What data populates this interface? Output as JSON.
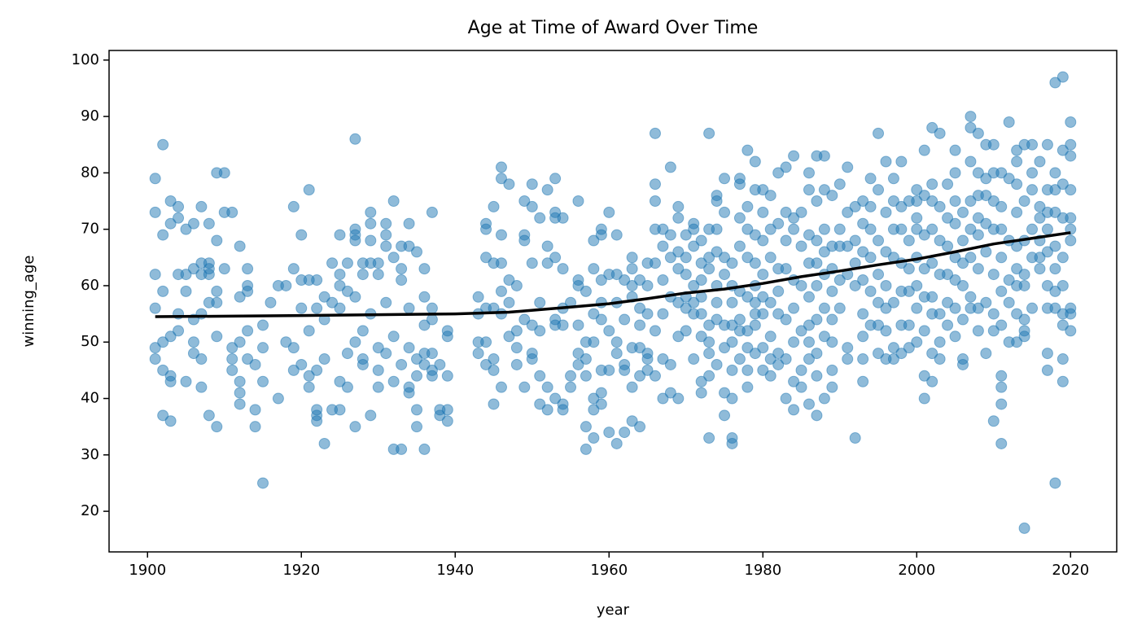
{
  "chart_data": {
    "type": "scatter",
    "title": "Age at Time of Award Over Time",
    "x_label": "year",
    "y_label": "winning_age",
    "color": "#1f77b4",
    "xlim": [
      1895,
      2026
    ],
    "ylim": [
      12.8,
      101.7
    ],
    "xticks": [
      1900,
      1920,
      1940,
      1960,
      1980,
      2000,
      2020
    ],
    "yticks": [
      20,
      30,
      40,
      50,
      60,
      70,
      80,
      90,
      100
    ],
    "grid": false,
    "x": [
      1901,
      1901,
      1901,
      1901,
      1901,
      1901,
      1902,
      1902,
      1902,
      1902,
      1902,
      1902,
      1903,
      1903,
      1903,
      1903,
      1903,
      1903,
      1904,
      1904,
      1904,
      1904,
      1904,
      1905,
      1905,
      1905,
      1905,
      1906,
      1906,
      1906,
      1906,
      1906,
      1907,
      1907,
      1907,
      1907,
      1907,
      1907,
      1908,
      1908,
      1908,
      1908,
      1908,
      1908,
      1909,
      1909,
      1909,
      1909,
      1909,
      1909,
      1910,
      1910,
      1910,
      1911,
      1911,
      1911,
      1911,
      1912,
      1912,
      1912,
      1912,
      1912,
      1912,
      1913,
      1913,
      1913,
      1913,
      1913,
      1914,
      1914,
      1914,
      1915,
      1915,
      1915,
      1915,
      1916,
      1917,
      1917,
      1918,
      1918,
      1919,
      1919,
      1919,
      1919,
      1920,
      1920,
      1920,
      1920,
      1921,
      1921,
      1921,
      1921,
      1921,
      1922,
      1922,
      1922,
      1922,
      1922,
      1922,
      1923,
      1923,
      1923,
      1923,
      1924,
      1924,
      1924,
      1925,
      1925,
      1925,
      1925,
      1925,
      1925,
      1926,
      1926,
      1926,
      1926,
      1927,
      1927,
      1927,
      1927,
      1927,
      1927,
      1927,
      1928,
      1928,
      1928,
      1928,
      1928,
      1929,
      1929,
      1929,
      1929,
      1929,
      1929,
      1930,
      1930,
      1930,
      1930,
      1930,
      1931,
      1931,
      1931,
      1931,
      1931,
      1932,
      1932,
      1932,
      1932,
      1932,
      1933,
      1933,
      1933,
      1933,
      1933,
      1934,
      1934,
      1934,
      1934,
      1934,
      1934,
      1935,
      1935,
      1935,
      1935,
      1935,
      1936,
      1936,
      1936,
      1936,
      1936,
      1936,
      1937,
      1937,
      1937,
      1937,
      1937,
      1937,
      1938,
      1938,
      1938,
      1939,
      1939,
      1939,
      1939,
      1939,
      1943,
      1943,
      1943,
      1943,
      1944,
      1944,
      1944,
      1944,
      1944,
      1944,
      1945,
      1945,
      1945,
      1945,
      1945,
      1945,
      1946,
      1946,
      1946,
      1946,
      1946,
      1946,
      1946,
      1947,
      1947,
      1947,
      1947,
      1948,
      1948,
      1948,
      1948,
      1949,
      1949,
      1949,
      1949,
      1949,
      1950,
      1950,
      1950,
      1950,
      1950,
      1950,
      1951,
      1951,
      1951,
      1951,
      1951,
      1952,
      1952,
      1952,
      1952,
      1952,
      1953,
      1953,
      1953,
      1953,
      1953,
      1953,
      1953,
      1954,
      1954,
      1954,
      1954,
      1954,
      1954,
      1955,
      1955,
      1955,
      1956,
      1956,
      1956,
      1956,
      1956,
      1956,
      1957,
      1957,
      1957,
      1957,
      1957,
      1957,
      1958,
      1958,
      1958,
      1958,
      1958,
      1958,
      1958,
      1959,
      1959,
      1959,
      1959,
      1959,
      1959,
      1959,
      1959,
      1960,
      1960,
      1960,
      1960,
      1960,
      1961,
      1961,
      1961,
      1961,
      1961,
      1961,
      1962,
      1962,
      1962,
      1962,
      1962,
      1963,
      1963,
      1963,
      1963,
      1963,
      1963,
      1963,
      1964,
      1964,
      1964,
      1964,
      1964,
      1964,
      1965,
      1965,
      1965,
      1965,
      1965,
      1965,
      1966,
      1966,
      1966,
      1966,
      1966,
      1966,
      1966,
      1967,
      1967,
      1967,
      1967,
      1967,
      1967,
      1968,
      1968,
      1968,
      1968,
      1968,
      1968,
      1969,
      1969,
      1969,
      1969,
      1969,
      1969,
      1969,
      1970,
      1970,
      1970,
      1970,
      1970,
      1970,
      1971,
      1971,
      1971,
      1971,
      1971,
      1971,
      1971,
      1972,
      1972,
      1972,
      1972,
      1972,
      1972,
      1972,
      1972,
      1973,
      1973,
      1973,
      1973,
      1973,
      1973,
      1973,
      1973,
      1973,
      1974,
      1974,
      1974,
      1974,
      1974,
      1974,
      1974,
      1974,
      1975,
      1975,
      1975,
      1975,
      1975,
      1975,
      1975,
      1975,
      1976,
      1976,
      1976,
      1976,
      1976,
      1976,
      1976,
      1976,
      1976,
      1977,
      1977,
      1977,
      1977,
      1977,
      1977,
      1977,
      1977,
      1978,
      1978,
      1978,
      1978,
      1978,
      1978,
      1978,
      1978,
      1978,
      1979,
      1979,
      1979,
      1979,
      1979,
      1979,
      1979,
      1979,
      1979,
      1980,
      1980,
      1980,
      1980,
      1980,
      1980,
      1980,
      1980,
      1981,
      1981,
      1981,
      1981,
      1981,
      1981,
      1981,
      1982,
      1982,
      1982,
      1982,
      1982,
      1982,
      1982,
      1983,
      1983,
      1983,
      1983,
      1983,
      1983,
      1983,
      1984,
      1984,
      1984,
      1984,
      1984,
      1984,
      1984,
      1984,
      1985,
      1985,
      1985,
      1985,
      1985,
      1985,
      1986,
      1986,
      1986,
      1986,
      1986,
      1986,
      1986,
      1986,
      1986,
      1987,
      1987,
      1987,
      1987,
      1987,
      1987,
      1987,
      1987,
      1987,
      1988,
      1988,
      1988,
      1988,
      1988,
      1988,
      1988,
      1988,
      1989,
      1989,
      1989,
      1989,
      1989,
      1989,
      1989,
      1989,
      1990,
      1990,
      1990,
      1990,
      1990,
      1991,
      1991,
      1991,
      1991,
      1991,
      1991,
      1992,
      1992,
      1992,
      1992,
      1992,
      1993,
      1993,
      1993,
      1993,
      1993,
      1993,
      1993,
      1993,
      1994,
      1994,
      1994,
      1994,
      1994,
      1994,
      1995,
      1995,
      1995,
      1995,
      1995,
      1995,
      1995,
      1996,
      1996,
      1996,
      1996,
      1996,
      1996,
      1996,
      1997,
      1997,
      1997,
      1997,
      1997,
      1997,
      1997,
      1998,
      1998,
      1998,
      1998,
      1998,
      1998,
      1998,
      1999,
      1999,
      1999,
      1999,
      1999,
      1999,
      2000,
      2000,
      2000,
      2000,
      2000,
      2000,
      2000,
      2000,
      2001,
      2001,
      2001,
      2001,
      2001,
      2001,
      2001,
      2001,
      2002,
      2002,
      2002,
      2002,
      2002,
      2002,
      2002,
      2002,
      2002,
      2003,
      2003,
      2003,
      2003,
      2003,
      2003,
      2003,
      2004,
      2004,
      2004,
      2004,
      2004,
      2004,
      2005,
      2005,
      2005,
      2005,
      2005,
      2005,
      2005,
      2005,
      2006,
      2006,
      2006,
      2006,
      2006,
      2006,
      2006,
      2007,
      2007,
      2007,
      2007,
      2007,
      2007,
      2007,
      2007,
      2008,
      2008,
      2008,
      2008,
      2008,
      2008,
      2008,
      2008,
      2009,
      2009,
      2009,
      2009,
      2009,
      2009,
      2009,
      2010,
      2010,
      2010,
      2010,
      2010,
      2010,
      2010,
      2010,
      2011,
      2011,
      2011,
      2011,
      2011,
      2011,
      2011,
      2011,
      2011,
      2011,
      2012,
      2012,
      2012,
      2012,
      2012,
      2012,
      2013,
      2013,
      2013,
      2013,
      2013,
      2013,
      2013,
      2013,
      2013,
      2014,
      2014,
      2014,
      2014,
      2014,
      2014,
      2014,
      2014,
      2014,
      2015,
      2015,
      2015,
      2015,
      2015,
      2015,
      2016,
      2016,
      2016,
      2016,
      2016,
      2016,
      2017,
      2017,
      2017,
      2017,
      2017,
      2017,
      2017,
      2017,
      2017,
      2018,
      2018,
      2018,
      2018,
      2018,
      2018,
      2018,
      2018,
      2018,
      2019,
      2019,
      2019,
      2019,
      2019,
      2019,
      2019,
      2019,
      2019,
      2019,
      2020,
      2020,
      2020,
      2020,
      2020,
      2020,
      2020,
      2020,
      2020,
      2020
    ],
    "values": [
      79,
      73,
      62,
      56,
      49,
      47,
      85,
      69,
      59,
      50,
      45,
      37,
      75,
      71,
      51,
      44,
      43,
      36,
      74,
      72,
      62,
      55,
      52,
      70,
      62,
      59,
      43,
      71,
      63,
      54,
      50,
      48,
      74,
      64,
      62,
      55,
      47,
      42,
      71,
      64,
      63,
      62,
      57,
      37,
      80,
      68,
      59,
      57,
      51,
      35,
      80,
      73,
      63,
      73,
      49,
      47,
      45,
      67,
      58,
      50,
      43,
      41,
      39,
      63,
      60,
      59,
      52,
      47,
      46,
      38,
      35,
      53,
      49,
      43,
      25,
      57,
      60,
      40,
      60,
      50,
      74,
      63,
      49,
      45,
      69,
      61,
      56,
      46,
      77,
      61,
      52,
      44,
      42,
      61,
      56,
      45,
      38,
      37,
      36,
      58,
      54,
      47,
      32,
      64,
      57,
      38,
      69,
      62,
      60,
      56,
      43,
      38,
      64,
      59,
      48,
      42,
      86,
      70,
      69,
      68,
      58,
      50,
      35,
      64,
      62,
      52,
      47,
      46,
      73,
      71,
      68,
      64,
      55,
      37,
      64,
      62,
      49,
      45,
      42,
      71,
      69,
      67,
      57,
      48,
      75,
      65,
      51,
      43,
      31,
      67,
      63,
      61,
      46,
      31,
      71,
      67,
      56,
      49,
      42,
      41,
      66,
      47,
      44,
      38,
      35,
      63,
      58,
      53,
      48,
      46,
      31,
      73,
      56,
      54,
      48,
      45,
      44,
      46,
      38,
      37,
      52,
      51,
      44,
      38,
      36,
      58,
      55,
      50,
      48,
      71,
      70,
      65,
      56,
      50,
      46,
      74,
      64,
      56,
      47,
      45,
      39,
      81,
      79,
      69,
      64,
      59,
      55,
      42,
      78,
      61,
      57,
      51,
      60,
      52,
      49,
      46,
      75,
      69,
      68,
      54,
      42,
      78,
      74,
      64,
      53,
      48,
      47,
      72,
      57,
      52,
      44,
      39,
      77,
      67,
      64,
      42,
      38,
      79,
      73,
      72,
      65,
      54,
      53,
      40,
      72,
      63,
      56,
      53,
      39,
      38,
      57,
      44,
      42,
      75,
      61,
      60,
      53,
      48,
      46,
      59,
      50,
      47,
      44,
      35,
      31,
      68,
      63,
      55,
      50,
      40,
      38,
      33,
      70,
      69,
      61,
      57,
      54,
      45,
      41,
      39,
      73,
      62,
      52,
      45,
      34,
      69,
      62,
      57,
      50,
      48,
      32,
      61,
      54,
      46,
      45,
      34,
      65,
      63,
      60,
      58,
      49,
      42,
      36,
      61,
      56,
      53,
      49,
      44,
      35,
      64,
      60,
      55,
      48,
      47,
      45,
      87,
      78,
      75,
      70,
      64,
      52,
      44,
      70,
      67,
      61,
      55,
      47,
      40,
      81,
      69,
      65,
      58,
      46,
      41,
      74,
      72,
      66,
      63,
      57,
      51,
      40,
      69,
      65,
      62,
      58,
      56,
      52,
      71,
      70,
      67,
      60,
      57,
      55,
      47,
      68,
      64,
      61,
      58,
      55,
      51,
      43,
      41,
      87,
      70,
      65,
      63,
      53,
      50,
      48,
      44,
      33,
      76,
      75,
      70,
      66,
      60,
      57,
      54,
      46,
      79,
      73,
      65,
      62,
      53,
      49,
      41,
      37,
      64,
      60,
      57,
      53,
      50,
      45,
      40,
      33,
      32,
      79,
      78,
      72,
      67,
      59,
      54,
      52,
      47,
      84,
      74,
      70,
      65,
      58,
      52,
      49,
      45,
      42,
      82,
      77,
      69,
      64,
      60,
      57,
      55,
      53,
      48,
      77,
      73,
      68,
      62,
      58,
      55,
      49,
      45,
      76,
      70,
      65,
      57,
      51,
      47,
      44,
      80,
      71,
      63,
      59,
      55,
      48,
      46,
      81,
      73,
      68,
      63,
      54,
      47,
      40,
      83,
      72,
      70,
      61,
      56,
      50,
      43,
      38,
      73,
      67,
      60,
      52,
      45,
      42,
      80,
      77,
      69,
      64,
      58,
      53,
      50,
      47,
      39,
      83,
      75,
      68,
      64,
      60,
      54,
      48,
      44,
      37,
      83,
      77,
      70,
      66,
      62,
      56,
      51,
      40,
      76,
      67,
      63,
      59,
      54,
      50,
      45,
      42,
      78,
      70,
      67,
      61,
      56,
      81,
      73,
      67,
      62,
      49,
      47,
      74,
      68,
      64,
      60,
      33,
      75,
      71,
      66,
      61,
      55,
      51,
      47,
      43,
      79,
      74,
      70,
      65,
      59,
      53,
      87,
      77,
      68,
      62,
      57,
      53,
      48,
      82,
      73,
      66,
      60,
      56,
      52,
      47,
      79,
      75,
      70,
      65,
      57,
      49,
      47,
      82,
      74,
      70,
      64,
      59,
      53,
      48,
      75,
      68,
      63,
      59,
      53,
      49,
      77,
      75,
      72,
      70,
      65,
      60,
      56,
      50,
      84,
      76,
      69,
      63,
      58,
      52,
      44,
      40,
      88,
      78,
      75,
      70,
      64,
      58,
      55,
      48,
      43,
      87,
      74,
      68,
      62,
      55,
      50,
      47,
      78,
      72,
      67,
      62,
      57,
      53,
      84,
      80,
      75,
      71,
      65,
      61,
      56,
      51,
      73,
      68,
      64,
      60,
      54,
      47,
      46,
      90,
      88,
      82,
      75,
      70,
      65,
      58,
      56,
      87,
      80,
      76,
      72,
      69,
      63,
      56,
      52,
      85,
      79,
      76,
      71,
      66,
      57,
      48,
      85,
      80,
      75,
      70,
      62,
      55,
      52,
      36,
      80,
      74,
      70,
      65,
      59,
      53,
      44,
      42,
      39,
      32,
      89,
      79,
      68,
      61,
      57,
      50,
      84,
      82,
      78,
      73,
      67,
      63,
      60,
      55,
      50,
      85,
      75,
      68,
      62,
      60,
      54,
      52,
      51,
      17,
      85,
      80,
      77,
      70,
      65,
      56,
      82,
      74,
      72,
      68,
      65,
      63,
      85,
      77,
      73,
      70,
      66,
      60,
      56,
      48,
      45,
      96,
      80,
      77,
      73,
      67,
      63,
      59,
      56,
      25,
      97,
      84,
      78,
      72,
      65,
      60,
      55,
      53,
      47,
      43,
      89,
      85,
      83,
      77,
      72,
      70,
      68,
      56,
      55,
      52
    ],
    "trend": {
      "color": "#000000",
      "x": [
        1901,
        1920,
        1940,
        1947,
        1955,
        1960,
        1965,
        1970,
        1975,
        1980,
        1985,
        1990,
        1995,
        2000,
        2005,
        2010,
        2015,
        2020
      ],
      "values": [
        54.5,
        54.7,
        55,
        55.3,
        56.2,
        56.8,
        57.7,
        58.7,
        59.4,
        60.4,
        61.6,
        62.6,
        63.7,
        64.7,
        66,
        67.4,
        68.4,
        69.4
      ]
    }
  }
}
